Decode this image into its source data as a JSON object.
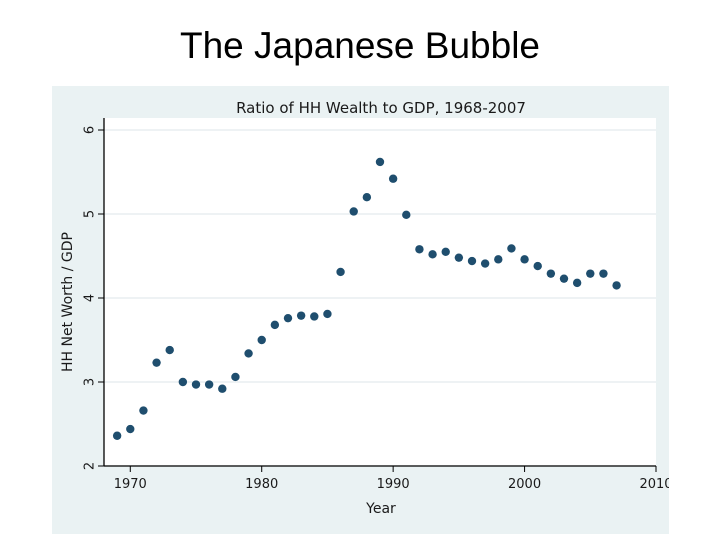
{
  "slide": {
    "title": "The Japanese Bubble"
  },
  "colors": {
    "outer_background": "#eaf2f3",
    "plot_background": "#ffffff",
    "gridline": "#e8eef0",
    "marker": "#1f4e6e",
    "axis": "#000000"
  },
  "chart_data": {
    "type": "scatter",
    "title": "Ratio of HH Wealth to GDP, 1968-2007",
    "xlabel": "Year",
    "ylabel": "HH Net Worth / GDP",
    "xlim": [
      1968,
      2010
    ],
    "ylim": [
      2,
      6
    ],
    "xticks": [
      1970,
      1980,
      1990,
      2000,
      2010
    ],
    "yticks": [
      2,
      3,
      4,
      5,
      6
    ],
    "grid": true,
    "legend": "none",
    "points": [
      {
        "x": 1969,
        "y": 2.36
      },
      {
        "x": 1970,
        "y": 2.44
      },
      {
        "x": 1971,
        "y": 2.66
      },
      {
        "x": 1972,
        "y": 3.23
      },
      {
        "x": 1973,
        "y": 3.38
      },
      {
        "x": 1974,
        "y": 3.0
      },
      {
        "x": 1975,
        "y": 2.97
      },
      {
        "x": 1976,
        "y": 2.97
      },
      {
        "x": 1977,
        "y": 2.92
      },
      {
        "x": 1978,
        "y": 3.06
      },
      {
        "x": 1979,
        "y": 3.34
      },
      {
        "x": 1980,
        "y": 3.5
      },
      {
        "x": 1981,
        "y": 3.68
      },
      {
        "x": 1982,
        "y": 3.76
      },
      {
        "x": 1983,
        "y": 3.79
      },
      {
        "x": 1984,
        "y": 3.78
      },
      {
        "x": 1985,
        "y": 3.81
      },
      {
        "x": 1986,
        "y": 4.31
      },
      {
        "x": 1987,
        "y": 5.03
      },
      {
        "x": 1988,
        "y": 5.2
      },
      {
        "x": 1989,
        "y": 5.62
      },
      {
        "x": 1990,
        "y": 5.42
      },
      {
        "x": 1991,
        "y": 4.99
      },
      {
        "x": 1992,
        "y": 4.58
      },
      {
        "x": 1993,
        "y": 4.52
      },
      {
        "x": 1994,
        "y": 4.55
      },
      {
        "x": 1995,
        "y": 4.48
      },
      {
        "x": 1996,
        "y": 4.44
      },
      {
        "x": 1997,
        "y": 4.41
      },
      {
        "x": 1998,
        "y": 4.46
      },
      {
        "x": 1999,
        "y": 4.59
      },
      {
        "x": 2000,
        "y": 4.46
      },
      {
        "x": 2001,
        "y": 4.38
      },
      {
        "x": 2002,
        "y": 4.29
      },
      {
        "x": 2003,
        "y": 4.23
      },
      {
        "x": 2004,
        "y": 4.18
      },
      {
        "x": 2005,
        "y": 4.29
      },
      {
        "x": 2006,
        "y": 4.29
      },
      {
        "x": 2007,
        "y": 4.15
      }
    ]
  }
}
